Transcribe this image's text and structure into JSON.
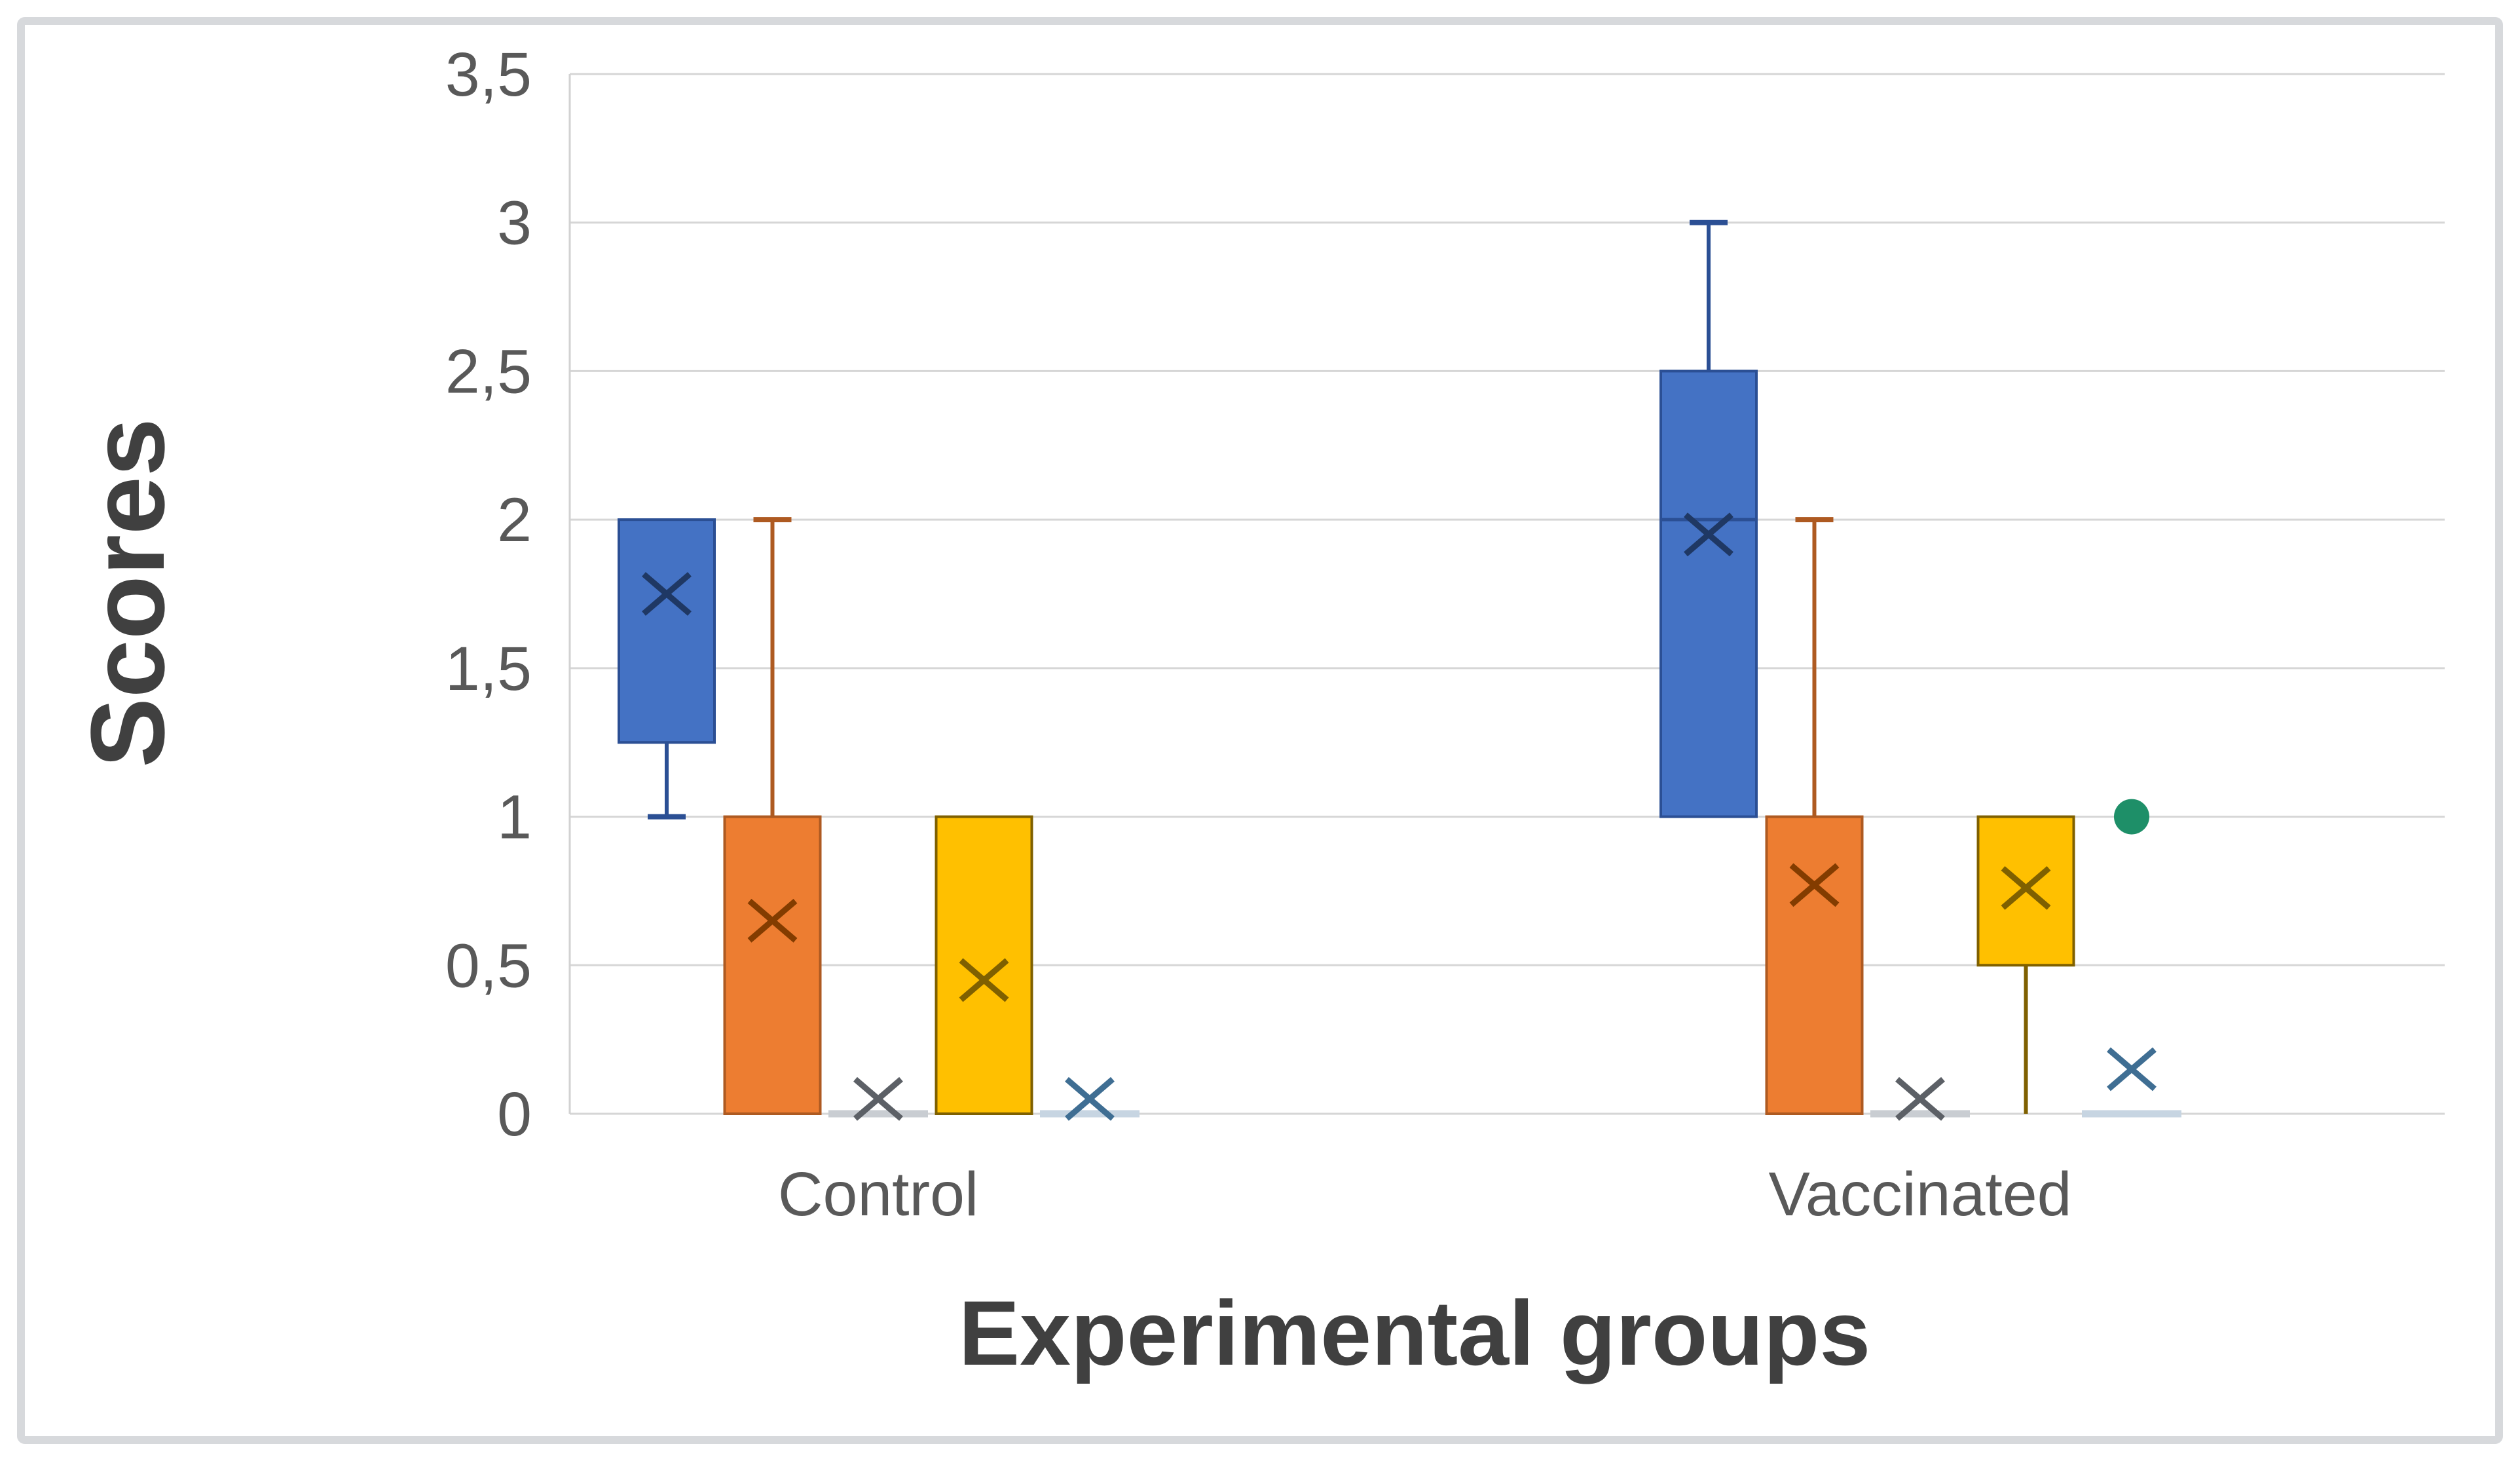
{
  "frame": {
    "background": "#FFFFFF",
    "border_color": "#D7D9DC"
  },
  "chart_data": {
    "type": "boxplot",
    "title": "",
    "xlabel": "Experimental groups",
    "ylabel": "Scores",
    "ylim": [
      0,
      3.5
    ],
    "grid": true,
    "legend": false,
    "decimal_separator": ",",
    "colors": {
      "gridline": "#D6D6D6",
      "axis_line": "#D2D2D2",
      "tick_label": "#595959",
      "category_label": "#595959",
      "axis_title": "#404040"
    },
    "y_ticks": [
      {
        "value": 0,
        "label": "0"
      },
      {
        "value": 0.5,
        "label": "0,5"
      },
      {
        "value": 1,
        "label": "1"
      },
      {
        "value": 1.5,
        "label": "1,5"
      },
      {
        "value": 2,
        "label": "2"
      },
      {
        "value": 2.5,
        "label": "2,5"
      },
      {
        "value": 3,
        "label": "3"
      },
      {
        "value": 3.5,
        "label": "3,5"
      }
    ],
    "categories": [
      "Control",
      "Vaccinated"
    ],
    "series": [
      {
        "name": "series-blue",
        "fill": "#4472C4",
        "stroke": "#2B4F94",
        "marker_color": "#1F3864",
        "groups": [
          {
            "category": "Control",
            "q1": 1.25,
            "median": 2.0,
            "q3": 2.0,
            "whisker_low": 1.0,
            "whisker_high": 2.0,
            "mean": 1.75,
            "outliers": []
          },
          {
            "category": "Vaccinated",
            "q1": 1.0,
            "median": 2.0,
            "q3": 2.5,
            "whisker_low": 1.0,
            "whisker_high": 3.0,
            "mean": 1.95,
            "outliers": []
          }
        ]
      },
      {
        "name": "series-orange",
        "fill": "#ED7D31",
        "stroke": "#AE5A21",
        "marker_color": "#833C00",
        "groups": [
          {
            "category": "Control",
            "q1": 0,
            "median": 0,
            "q3": 1.0,
            "whisker_low": 0,
            "whisker_high": 2.0,
            "mean": 0.65,
            "outliers": []
          },
          {
            "category": "Vaccinated",
            "q1": 0,
            "median": 0,
            "q3": 1.0,
            "whisker_low": 0,
            "whisker_high": 2.0,
            "mean": 0.77,
            "outliers": []
          }
        ]
      },
      {
        "name": "series-gray",
        "fill": "#C9CDD2",
        "stroke": "#B5B9BE",
        "marker_color": "#5C6066",
        "collapsed_line_color": "#C9CDD2",
        "groups": [
          {
            "category": "Control",
            "q1": 0,
            "median": 0,
            "q3": 0,
            "whisker_low": 0,
            "whisker_high": 0,
            "mean": 0.05,
            "outliers": []
          },
          {
            "category": "Vaccinated",
            "q1": 0,
            "median": 0,
            "q3": 0,
            "whisker_low": 0,
            "whisker_high": 0,
            "mean": 0.05,
            "outliers": []
          }
        ]
      },
      {
        "name": "series-yellow",
        "fill": "#FFC000",
        "stroke": "#7F6000",
        "marker_color": "#7F6000",
        "groups": [
          {
            "category": "Control",
            "q1": 0,
            "median": 0,
            "q3": 1.0,
            "whisker_low": 0,
            "whisker_high": 1.0,
            "mean": 0.45,
            "outliers": []
          },
          {
            "category": "Vaccinated",
            "q1": 0.5,
            "median": 0.5,
            "q3": 1.0,
            "whisker_low": 0,
            "whisker_high": 1.0,
            "mean": 0.76,
            "whisker_low_cap": false,
            "outliers": []
          }
        ]
      },
      {
        "name": "series-lightblue",
        "fill": "#C7D5E2",
        "stroke": "#9DB6CC",
        "marker_color": "#3F6E93",
        "collapsed_line_color": "#C7D5E2",
        "groups": [
          {
            "category": "Control",
            "q1": 0,
            "median": 0,
            "q3": 0,
            "whisker_low": 0,
            "whisker_high": 0,
            "mean": 0.05,
            "outliers": []
          },
          {
            "category": "Vaccinated",
            "q1": 0,
            "median": 0,
            "q3": 0,
            "whisker_low": 0,
            "whisker_high": 0,
            "mean": 0.15,
            "outliers": [
              {
                "value": 1.0,
                "color": "#1E8F68"
              }
            ]
          }
        ]
      }
    ]
  }
}
